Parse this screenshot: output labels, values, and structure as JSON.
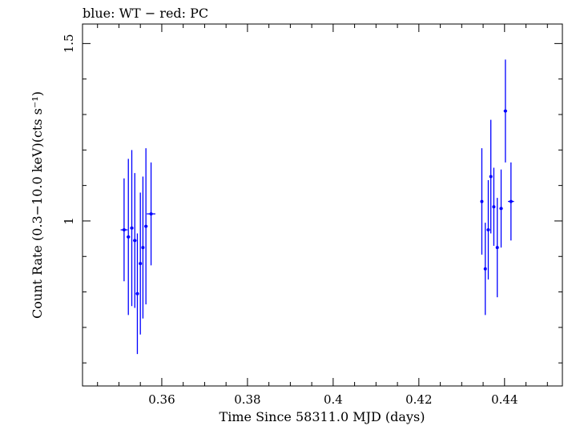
{
  "chart_data": {
    "type": "scatter",
    "title": "blue: WT − red: PC",
    "xlabel": "Time Since 58311.0 MJD (days)",
    "ylabel": "Count Rate (0.3−10.0 keV)(cts s⁻¹)",
    "xlim": [
      0.3415,
      0.4535
    ],
    "ylim": [
      0.535,
      1.555
    ],
    "x_ticks": [
      0.36,
      0.38,
      0.4,
      0.42,
      0.44
    ],
    "x_tick_labels": [
      "0.36",
      "0.38",
      "0.4",
      "0.42",
      "0.44"
    ],
    "y_ticks": [
      1,
      1.5
    ],
    "y_tick_labels": [
      "1",
      "1.5"
    ],
    "grid": false,
    "series": [
      {
        "name": "WT",
        "color": "#0000ff",
        "points": [
          {
            "x": 0.3512,
            "y": 0.975,
            "xerr": 0.0008,
            "yerr": 0.145
          },
          {
            "x": 0.3522,
            "y": 0.955,
            "xerr": 0.0004,
            "yerr": 0.22
          },
          {
            "x": 0.353,
            "y": 0.98,
            "xerr": 0.0004,
            "yerr": 0.22
          },
          {
            "x": 0.3537,
            "y": 0.945,
            "xerr": 0.0004,
            "yerr": 0.19
          },
          {
            "x": 0.3543,
            "y": 0.795,
            "xerr": 0.0004,
            "yerr": 0.17
          },
          {
            "x": 0.355,
            "y": 0.88,
            "xerr": 0.0003,
            "yerr": 0.2
          },
          {
            "x": 0.3556,
            "y": 0.925,
            "xerr": 0.0003,
            "yerr": 0.2
          },
          {
            "x": 0.3563,
            "y": 0.985,
            "xerr": 0.0004,
            "yerr": 0.22
          },
          {
            "x": 0.3575,
            "y": 1.02,
            "xerr": 0.001,
            "yerr": 0.145
          },
          {
            "x": 0.4347,
            "y": 1.055,
            "xerr": 0.0003,
            "yerr": 0.15
          },
          {
            "x": 0.4355,
            "y": 0.865,
            "xerr": 0.0003,
            "yerr": 0.13
          },
          {
            "x": 0.4362,
            "y": 0.975,
            "xerr": 0.0004,
            "yerr": 0.14
          },
          {
            "x": 0.4368,
            "y": 1.125,
            "xerr": 0.0003,
            "yerr": 0.16
          },
          {
            "x": 0.4375,
            "y": 1.04,
            "xerr": 0.0003,
            "yerr": 0.11
          },
          {
            "x": 0.4383,
            "y": 0.925,
            "xerr": 0.0003,
            "yerr": 0.14
          },
          {
            "x": 0.4392,
            "y": 1.035,
            "xerr": 0.0004,
            "yerr": 0.11
          },
          {
            "x": 0.4402,
            "y": 1.31,
            "xerr": 0.0004,
            "yerr": 0.145
          },
          {
            "x": 0.4415,
            "y": 1.055,
            "xerr": 0.0007,
            "yerr": 0.11
          }
        ]
      }
    ]
  }
}
